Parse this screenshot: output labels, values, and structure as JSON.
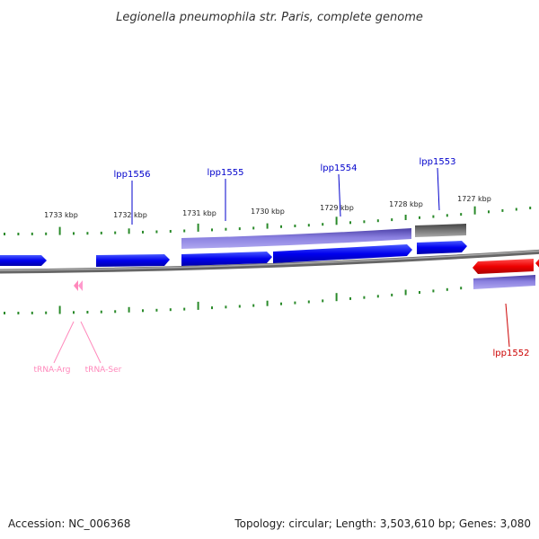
{
  "title": "Legionella pneumophila str. Paris, complete genome",
  "ruler_labels": [
    "1733 kbp",
    "1732 kbp",
    "1731 kbp",
    "1730 kbp",
    "1729 kbp",
    "1728 kbp",
    "1727 kbp"
  ],
  "genes": {
    "lpp1556": "lpp1556",
    "lpp1555": "lpp1555",
    "lpp1554": "lpp1554",
    "lpp1553": "lpp1553",
    "lpp1552": "lpp1552"
  },
  "trnas": {
    "arg": "tRNA-Arg",
    "ser": "tRNA-Ser"
  },
  "footer": {
    "accession": "Accession: NC_006368",
    "summary": "Topology: circular; Length: 3,503,610 bp; Genes: 3,080"
  },
  "colors": {
    "forward_cds": "#0000ee",
    "reverse_cds": "#ee0000",
    "gene_bar": "#7a6fd6",
    "pseudo": "#666666",
    "trna": "#ff88bb",
    "tick": "#2a8a2a",
    "backbone": "#888888"
  }
}
